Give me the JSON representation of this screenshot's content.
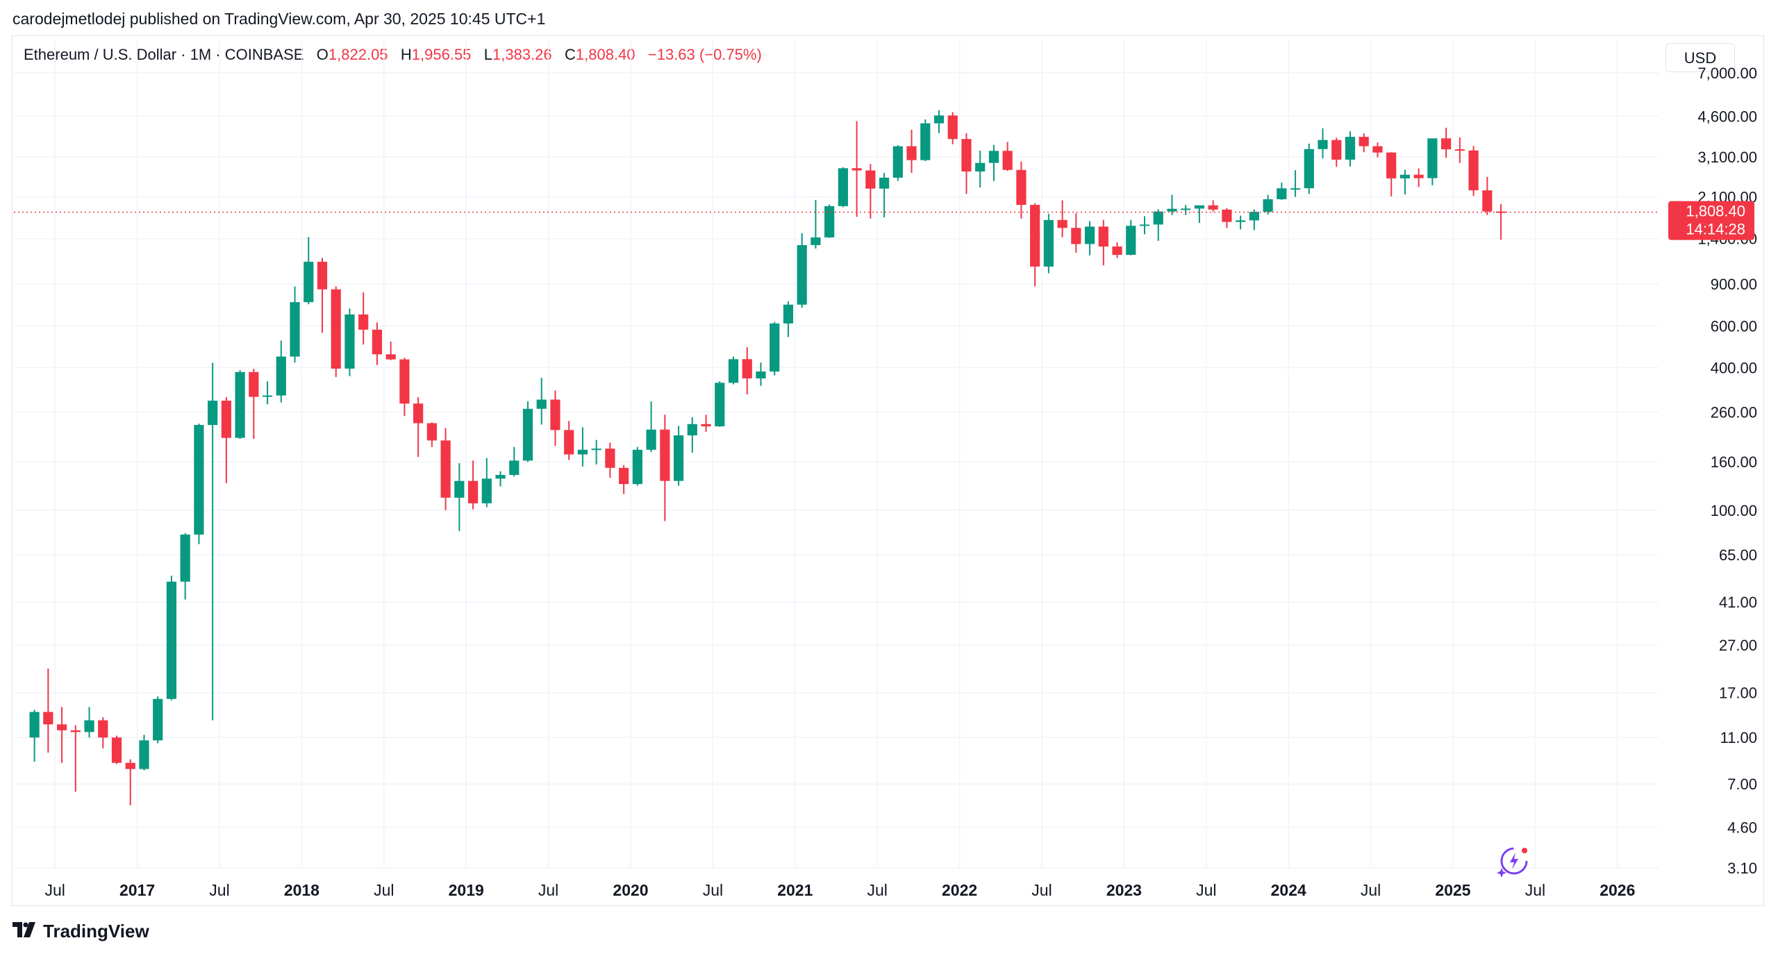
{
  "publisher": "carodejmetlodej published on TradingView.com, Apr 30, 2025 10:45 UTC+1",
  "legend": {
    "symbol": "Ethereum / U.S. Dollar · 1M · COINBASE",
    "open_label": "O",
    "open": "1,822.05",
    "high_label": "H",
    "high": "1,956.55",
    "low_label": "L",
    "low": "1,383.26",
    "close_label": "C",
    "close": "1,808.40",
    "change": "−13.63 (−0.75%)"
  },
  "currency_button": "USD",
  "footer_brand": "TradingView",
  "price_tag": {
    "price": "1,808.40",
    "countdown": "14:14:28"
  },
  "colors": {
    "up": "#089981",
    "down": "#f23645",
    "grid": "#f0f3fa",
    "text": "#131722"
  },
  "chart_data": {
    "type": "candlestick",
    "scale": "log",
    "ylim": [
      3.1,
      7000
    ],
    "xlim": [
      "2016-04",
      "2026-03"
    ],
    "y_ticks": [
      "7,000.00",
      "4,600.00",
      "3,100.00",
      "2,100.00",
      "1,400.00",
      "900.00",
      "600.00",
      "400.00",
      "260.00",
      "160.00",
      "100.00",
      "65.00",
      "41.00",
      "27.00",
      "17.00",
      "11.00",
      "7.00",
      "4.60",
      "3.10"
    ],
    "x_ticks": [
      {
        "t": "2016-07",
        "label": "Jul",
        "bold": false
      },
      {
        "t": "2017-01",
        "label": "2017",
        "bold": true
      },
      {
        "t": "2017-07",
        "label": "Jul",
        "bold": false
      },
      {
        "t": "2018-01",
        "label": "2018",
        "bold": true
      },
      {
        "t": "2018-07",
        "label": "Jul",
        "bold": false
      },
      {
        "t": "2019-01",
        "label": "2019",
        "bold": true
      },
      {
        "t": "2019-07",
        "label": "Jul",
        "bold": false
      },
      {
        "t": "2020-01",
        "label": "2020",
        "bold": true
      },
      {
        "t": "2020-07",
        "label": "Jul",
        "bold": false
      },
      {
        "t": "2021-01",
        "label": "2021",
        "bold": true
      },
      {
        "t": "2021-07",
        "label": "Jul",
        "bold": false
      },
      {
        "t": "2022-01",
        "label": "2022",
        "bold": true
      },
      {
        "t": "2022-07",
        "label": "Jul",
        "bold": false
      },
      {
        "t": "2023-01",
        "label": "2023",
        "bold": true
      },
      {
        "t": "2023-07",
        "label": "Jul",
        "bold": false
      },
      {
        "t": "2024-01",
        "label": "2024",
        "bold": true
      },
      {
        "t": "2024-07",
        "label": "Jul",
        "bold": false
      },
      {
        "t": "2025-01",
        "label": "2025",
        "bold": true
      },
      {
        "t": "2025-07",
        "label": "Jul",
        "bold": false
      },
      {
        "t": "2026-01",
        "label": "2026",
        "bold": true
      }
    ],
    "last_price": 1808.4,
    "candles": [
      {
        "t": "2016-05",
        "o": 11.0,
        "h": 14.4,
        "l": 8.7,
        "c": 14.1
      },
      {
        "t": "2016-06",
        "o": 14.1,
        "h": 21.5,
        "l": 9.5,
        "c": 12.5
      },
      {
        "t": "2016-07",
        "o": 12.5,
        "h": 14.8,
        "l": 8.6,
        "c": 11.8
      },
      {
        "t": "2016-08",
        "o": 11.8,
        "h": 12.4,
        "l": 6.5,
        "c": 11.6
      },
      {
        "t": "2016-09",
        "o": 11.6,
        "h": 14.8,
        "l": 11.0,
        "c": 13.0
      },
      {
        "t": "2016-10",
        "o": 13.0,
        "h": 13.4,
        "l": 9.9,
        "c": 11.0
      },
      {
        "t": "2016-11",
        "o": 11.0,
        "h": 11.2,
        "l": 8.5,
        "c": 8.6
      },
      {
        "t": "2016-12",
        "o": 8.6,
        "h": 8.9,
        "l": 5.7,
        "c": 8.1
      },
      {
        "t": "2017-01",
        "o": 8.1,
        "h": 11.3,
        "l": 8.0,
        "c": 10.7
      },
      {
        "t": "2017-02",
        "o": 10.7,
        "h": 16.4,
        "l": 10.4,
        "c": 16.0
      },
      {
        "t": "2017-03",
        "o": 16.0,
        "h": 53.0,
        "l": 15.8,
        "c": 50.0
      },
      {
        "t": "2017-04",
        "o": 50.0,
        "h": 80.0,
        "l": 42.0,
        "c": 79.0
      },
      {
        "t": "2017-05",
        "o": 79.0,
        "h": 232.0,
        "l": 72.0,
        "c": 229.0
      },
      {
        "t": "2017-06",
        "o": 229.0,
        "h": 419.0,
        "l": 13.0,
        "c": 290.0
      },
      {
        "t": "2017-07",
        "o": 290.0,
        "h": 300.0,
        "l": 130.0,
        "c": 202.0
      },
      {
        "t": "2017-08",
        "o": 202.0,
        "h": 390.0,
        "l": 200.0,
        "c": 383.0
      },
      {
        "t": "2017-09",
        "o": 383.0,
        "h": 395.0,
        "l": 200.0,
        "c": 301.0
      },
      {
        "t": "2017-10",
        "o": 301.0,
        "h": 350.0,
        "l": 280.0,
        "c": 305.0
      },
      {
        "t": "2017-11",
        "o": 305.0,
        "h": 520.0,
        "l": 285.0,
        "c": 445.0
      },
      {
        "t": "2017-12",
        "o": 445.0,
        "h": 880.0,
        "l": 420.0,
        "c": 755.0
      },
      {
        "t": "2018-01",
        "o": 755.0,
        "h": 1420.0,
        "l": 740.0,
        "c": 1118.0
      },
      {
        "t": "2018-02",
        "o": 1118.0,
        "h": 1160.0,
        "l": 560.0,
        "c": 855.0
      },
      {
        "t": "2018-03",
        "o": 855.0,
        "h": 880.0,
        "l": 365.0,
        "c": 396.0
      },
      {
        "t": "2018-04",
        "o": 396.0,
        "h": 710.0,
        "l": 368.0,
        "c": 670.0
      },
      {
        "t": "2018-05",
        "o": 670.0,
        "h": 830.0,
        "l": 500.0,
        "c": 578.0
      },
      {
        "t": "2018-06",
        "o": 578.0,
        "h": 620.0,
        "l": 410.0,
        "c": 455.0
      },
      {
        "t": "2018-07",
        "o": 455.0,
        "h": 515.0,
        "l": 430.0,
        "c": 433.0
      },
      {
        "t": "2018-08",
        "o": 433.0,
        "h": 440.0,
        "l": 250.0,
        "c": 282.0
      },
      {
        "t": "2018-09",
        "o": 282.0,
        "h": 300.0,
        "l": 168.0,
        "c": 233.0
      },
      {
        "t": "2018-10",
        "o": 233.0,
        "h": 235.0,
        "l": 185.0,
        "c": 197.0
      },
      {
        "t": "2018-11",
        "o": 197.0,
        "h": 222.0,
        "l": 100.0,
        "c": 113.0
      },
      {
        "t": "2018-12",
        "o": 113.0,
        "h": 158.0,
        "l": 81.8,
        "c": 133.0
      },
      {
        "t": "2019-01",
        "o": 133.0,
        "h": 162.0,
        "l": 101.0,
        "c": 107.0
      },
      {
        "t": "2019-02",
        "o": 107.0,
        "h": 166.0,
        "l": 103.0,
        "c": 136.0
      },
      {
        "t": "2019-03",
        "o": 136.0,
        "h": 146.0,
        "l": 126.0,
        "c": 141.0
      },
      {
        "t": "2019-04",
        "o": 141.0,
        "h": 185.0,
        "l": 139.0,
        "c": 162.0
      },
      {
        "t": "2019-05",
        "o": 162.0,
        "h": 288.0,
        "l": 160.0,
        "c": 268.0
      },
      {
        "t": "2019-06",
        "o": 268.0,
        "h": 362.0,
        "l": 230.0,
        "c": 293.0
      },
      {
        "t": "2019-07",
        "o": 293.0,
        "h": 320.0,
        "l": 187.0,
        "c": 218.0
      },
      {
        "t": "2019-08",
        "o": 218.0,
        "h": 238.0,
        "l": 163.0,
        "c": 172.0
      },
      {
        "t": "2019-09",
        "o": 172.0,
        "h": 224.0,
        "l": 153.0,
        "c": 180.0
      },
      {
        "t": "2019-10",
        "o": 180.0,
        "h": 198.0,
        "l": 156.0,
        "c": 182.0
      },
      {
        "t": "2019-11",
        "o": 182.0,
        "h": 193.0,
        "l": 137.0,
        "c": 151.0
      },
      {
        "t": "2019-12",
        "o": 151.0,
        "h": 155.0,
        "l": 117.0,
        "c": 129.0
      },
      {
        "t": "2020-01",
        "o": 129.0,
        "h": 185.0,
        "l": 127.0,
        "c": 180.0
      },
      {
        "t": "2020-02",
        "o": 180.0,
        "h": 288.0,
        "l": 176.0,
        "c": 219.0
      },
      {
        "t": "2020-03",
        "o": 219.0,
        "h": 253.0,
        "l": 90.0,
        "c": 133.0
      },
      {
        "t": "2020-04",
        "o": 133.0,
        "h": 227.0,
        "l": 127.0,
        "c": 207.0
      },
      {
        "t": "2020-05",
        "o": 207.0,
        "h": 247.0,
        "l": 175.0,
        "c": 231.0
      },
      {
        "t": "2020-06",
        "o": 231.0,
        "h": 253.0,
        "l": 214.0,
        "c": 226.0
      },
      {
        "t": "2020-07",
        "o": 226.0,
        "h": 350.0,
        "l": 225.0,
        "c": 345.0
      },
      {
        "t": "2020-08",
        "o": 345.0,
        "h": 445.0,
        "l": 340.0,
        "c": 434.0
      },
      {
        "t": "2020-09",
        "o": 434.0,
        "h": 488.0,
        "l": 308.0,
        "c": 360.0
      },
      {
        "t": "2020-10",
        "o": 360.0,
        "h": 420.0,
        "l": 335.0,
        "c": 385.0
      },
      {
        "t": "2020-11",
        "o": 385.0,
        "h": 623.0,
        "l": 371.0,
        "c": 614.0
      },
      {
        "t": "2020-12",
        "o": 614.0,
        "h": 760.0,
        "l": 538.0,
        "c": 737.0
      },
      {
        "t": "2021-01",
        "o": 737.0,
        "h": 1475.0,
        "l": 715.0,
        "c": 1314.0
      },
      {
        "t": "2021-02",
        "o": 1314.0,
        "h": 2040.0,
        "l": 1271.0,
        "c": 1416.0
      },
      {
        "t": "2021-03",
        "o": 1416.0,
        "h": 1950.0,
        "l": 1410.0,
        "c": 1919.0
      },
      {
        "t": "2021-04",
        "o": 1919.0,
        "h": 2800.0,
        "l": 1900.0,
        "c": 2773.0
      },
      {
        "t": "2021-05",
        "o": 2773.0,
        "h": 4380.0,
        "l": 1730.0,
        "c": 2714.0
      },
      {
        "t": "2021-06",
        "o": 2714.0,
        "h": 2890.0,
        "l": 1700.0,
        "c": 2275.0
      },
      {
        "t": "2021-07",
        "o": 2275.0,
        "h": 2650.0,
        "l": 1718.0,
        "c": 2530.0
      },
      {
        "t": "2021-08",
        "o": 2530.0,
        "h": 3470.0,
        "l": 2450.0,
        "c": 3433.0
      },
      {
        "t": "2021-09",
        "o": 3433.0,
        "h": 4030.0,
        "l": 2650.0,
        "c": 3000.0
      },
      {
        "t": "2021-10",
        "o": 3000.0,
        "h": 4460.0,
        "l": 2970.0,
        "c": 4290.0
      },
      {
        "t": "2021-11",
        "o": 4290.0,
        "h": 4870.0,
        "l": 3900.0,
        "c": 4630.0
      },
      {
        "t": "2021-12",
        "o": 4630.0,
        "h": 4780.0,
        "l": 3500.0,
        "c": 3683.0
      },
      {
        "t": "2022-01",
        "o": 3683.0,
        "h": 3900.0,
        "l": 2160.0,
        "c": 2687.0
      },
      {
        "t": "2022-02",
        "o": 2687.0,
        "h": 3290.0,
        "l": 2300.0,
        "c": 2920.0
      },
      {
        "t": "2022-03",
        "o": 2920.0,
        "h": 3480.0,
        "l": 2450.0,
        "c": 3283.0
      },
      {
        "t": "2022-04",
        "o": 3283.0,
        "h": 3580.0,
        "l": 2700.0,
        "c": 2728.0
      },
      {
        "t": "2022-05",
        "o": 2728.0,
        "h": 2960.0,
        "l": 1700.0,
        "c": 1942.0
      },
      {
        "t": "2022-06",
        "o": 1942.0,
        "h": 1970.0,
        "l": 880.0,
        "c": 1067.0
      },
      {
        "t": "2022-07",
        "o": 1067.0,
        "h": 1780.0,
        "l": 1000.0,
        "c": 1677.0
      },
      {
        "t": "2022-08",
        "o": 1677.0,
        "h": 2030.0,
        "l": 1420.0,
        "c": 1553.0
      },
      {
        "t": "2022-09",
        "o": 1553.0,
        "h": 1790.0,
        "l": 1220.0,
        "c": 1328.0
      },
      {
        "t": "2022-10",
        "o": 1328.0,
        "h": 1660.0,
        "l": 1190.0,
        "c": 1573.0
      },
      {
        "t": "2022-11",
        "o": 1573.0,
        "h": 1680.0,
        "l": 1080.0,
        "c": 1296.0
      },
      {
        "t": "2022-12",
        "o": 1296.0,
        "h": 1350.0,
        "l": 1160.0,
        "c": 1196.0
      },
      {
        "t": "2023-01",
        "o": 1196.0,
        "h": 1680.0,
        "l": 1190.0,
        "c": 1585.0
      },
      {
        "t": "2023-02",
        "o": 1585.0,
        "h": 1740.0,
        "l": 1460.0,
        "c": 1605.0
      },
      {
        "t": "2023-03",
        "o": 1605.0,
        "h": 1860.0,
        "l": 1370.0,
        "c": 1822.0
      },
      {
        "t": "2023-04",
        "o": 1822.0,
        "h": 2140.0,
        "l": 1760.0,
        "c": 1870.0
      },
      {
        "t": "2023-05",
        "o": 1870.0,
        "h": 1940.0,
        "l": 1760.0,
        "c": 1874.0
      },
      {
        "t": "2023-06",
        "o": 1874.0,
        "h": 1935.0,
        "l": 1630.0,
        "c": 1934.0
      },
      {
        "t": "2023-07",
        "o": 1934.0,
        "h": 2030.0,
        "l": 1820.0,
        "c": 1856.0
      },
      {
        "t": "2023-08",
        "o": 1856.0,
        "h": 1880.0,
        "l": 1550.0,
        "c": 1646.0
      },
      {
        "t": "2023-09",
        "o": 1646.0,
        "h": 1750.0,
        "l": 1530.0,
        "c": 1671.0
      },
      {
        "t": "2023-10",
        "o": 1671.0,
        "h": 1860.0,
        "l": 1520.0,
        "c": 1815.0
      },
      {
        "t": "2023-11",
        "o": 1815.0,
        "h": 2140.0,
        "l": 1770.0,
        "c": 2052.0
      },
      {
        "t": "2023-12",
        "o": 2052.0,
        "h": 2410.0,
        "l": 2040.0,
        "c": 2282.0
      },
      {
        "t": "2024-01",
        "o": 2282.0,
        "h": 2720.0,
        "l": 2100.0,
        "c": 2283.0
      },
      {
        "t": "2024-02",
        "o": 2283.0,
        "h": 3520.0,
        "l": 2160.0,
        "c": 3340.0
      },
      {
        "t": "2024-03",
        "o": 3340.0,
        "h": 4090.0,
        "l": 3050.0,
        "c": 3647.0
      },
      {
        "t": "2024-04",
        "o": 3647.0,
        "h": 3730.0,
        "l": 2810.0,
        "c": 3014.0
      },
      {
        "t": "2024-05",
        "o": 3014.0,
        "h": 3970.0,
        "l": 2820.0,
        "c": 3762.0
      },
      {
        "t": "2024-06",
        "o": 3762.0,
        "h": 3890.0,
        "l": 3240.0,
        "c": 3434.0
      },
      {
        "t": "2024-07",
        "o": 3434.0,
        "h": 3560.0,
        "l": 3080.0,
        "c": 3230.0
      },
      {
        "t": "2024-08",
        "o": 3230.0,
        "h": 3240.0,
        "l": 2110.0,
        "c": 2513.0
      },
      {
        "t": "2024-09",
        "o": 2513.0,
        "h": 2730.0,
        "l": 2150.0,
        "c": 2603.0
      },
      {
        "t": "2024-10",
        "o": 2603.0,
        "h": 2770.0,
        "l": 2310.0,
        "c": 2518.0
      },
      {
        "t": "2024-11",
        "o": 2518.0,
        "h": 3680.0,
        "l": 2350.0,
        "c": 3706.0
      },
      {
        "t": "2024-12",
        "o": 3706.0,
        "h": 4110.0,
        "l": 3070.0,
        "c": 3332.0
      },
      {
        "t": "2025-01",
        "o": 3332.0,
        "h": 3740.0,
        "l": 2920.0,
        "c": 3297.0
      },
      {
        "t": "2025-02",
        "o": 3297.0,
        "h": 3440.0,
        "l": 2120.0,
        "c": 2237.0
      },
      {
        "t": "2025-03",
        "o": 2237.0,
        "h": 2550.0,
        "l": 1760.0,
        "c": 1822.0
      },
      {
        "t": "2025-04",
        "o": 1822.05,
        "h": 1956.55,
        "l": 1383.26,
        "c": 1808.4
      }
    ]
  }
}
